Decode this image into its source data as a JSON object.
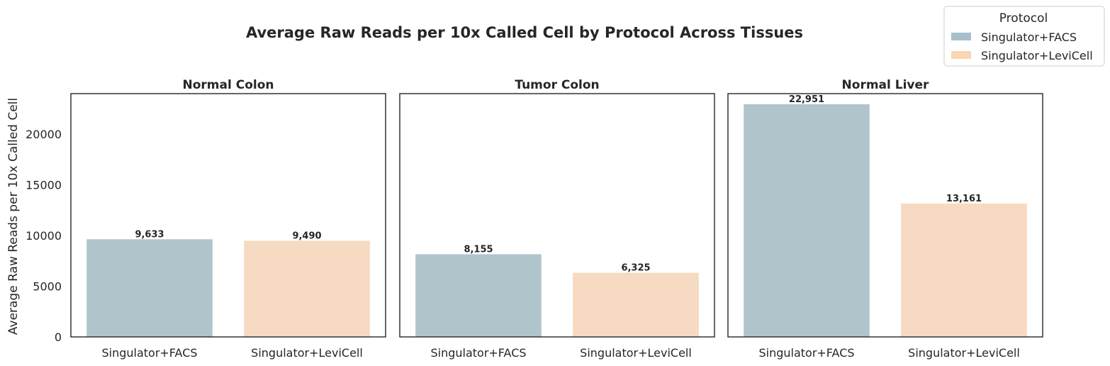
{
  "chart_data": {
    "type": "bar",
    "title": "Average Raw Reads per 10x Called Cell by Protocol Across Tissues",
    "ylabel": "Average Raw Reads per 10x Called Cell",
    "ylim": [
      0,
      24000
    ],
    "yticks": [
      0,
      5000,
      10000,
      15000,
      20000
    ],
    "ytick_labels": [
      "0",
      "5000",
      "10000",
      "15000",
      "20000"
    ],
    "categories": [
      "Singulator+FACS",
      "Singulator+LeviCell"
    ],
    "colors": [
      "#b0c4cc",
      "#f6dac1"
    ],
    "legend": {
      "title": "Protocol",
      "placement": "top-right",
      "entries": [
        "Singulator+FACS",
        "Singulator+LeviCell"
      ],
      "colors": [
        "#a6bfcb",
        "#fcd6b2"
      ]
    },
    "panels": [
      {
        "title": "Normal Colon",
        "values": [
          9633,
          9490
        ],
        "labels": [
          "9,633",
          "9,490"
        ]
      },
      {
        "title": "Tumor Colon",
        "values": [
          8155,
          6325
        ],
        "labels": [
          "8,155",
          "6,325"
        ]
      },
      {
        "title": "Normal Liver",
        "values": [
          22951,
          13161
        ],
        "labels": [
          "22,951",
          "13,161"
        ]
      }
    ]
  }
}
